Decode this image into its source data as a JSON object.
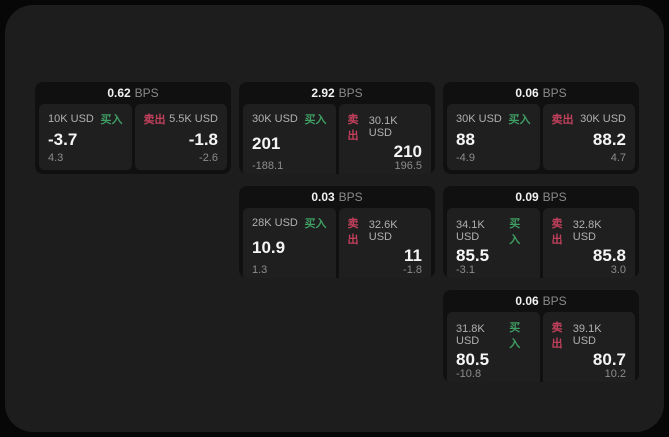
{
  "labels": {
    "bps": "BPS",
    "buy": "买入",
    "sell": "卖出"
  },
  "colors": {
    "outer_background": "#070707",
    "panel_background": "#1d1d1d",
    "card_background": "#101010",
    "pane_background": "#1f1f1f",
    "buy_green": "#3f9e63",
    "sell_red": "#c2405c",
    "value_white": "#f5f5f5",
    "muted_gray": "#8c8c8c"
  },
  "cards": [
    {
      "bps": "0.62",
      "buy": {
        "amount": "10K USD",
        "value": "-3.7",
        "sub": "4.3"
      },
      "sell": {
        "amount": "5.5K USD",
        "value": "-1.8",
        "sub": "-2.6"
      }
    },
    {
      "bps": "2.92",
      "buy": {
        "amount": "30K USD",
        "value": "201",
        "sub": "-188.1"
      },
      "sell": {
        "amount": "30.1K USD",
        "value": "210",
        "sub": "196.5"
      }
    },
    {
      "bps": "0.06",
      "buy": {
        "amount": "30K USD",
        "value": "88",
        "sub": "-4.9"
      },
      "sell": {
        "amount": "30K USD",
        "value": "88.2",
        "sub": "4.7"
      }
    },
    {
      "bps": "0.03",
      "buy": {
        "amount": "28K USD",
        "value": "10.9",
        "sub": "1.3"
      },
      "sell": {
        "amount": "32.6K USD",
        "value": "11",
        "sub": "-1.8"
      }
    },
    {
      "bps": "0.09",
      "buy": {
        "amount": "34.1K USD",
        "value": "85.5",
        "sub": "-3.1"
      },
      "sell": {
        "amount": "32.8K USD",
        "value": "85.8",
        "sub": "3.0"
      }
    },
    {
      "bps": "0.06",
      "buy": {
        "amount": "31.8K USD",
        "value": "80.5",
        "sub": "-10.8"
      },
      "sell": {
        "amount": "39.1K USD",
        "value": "80.7",
        "sub": "10.2"
      }
    }
  ]
}
